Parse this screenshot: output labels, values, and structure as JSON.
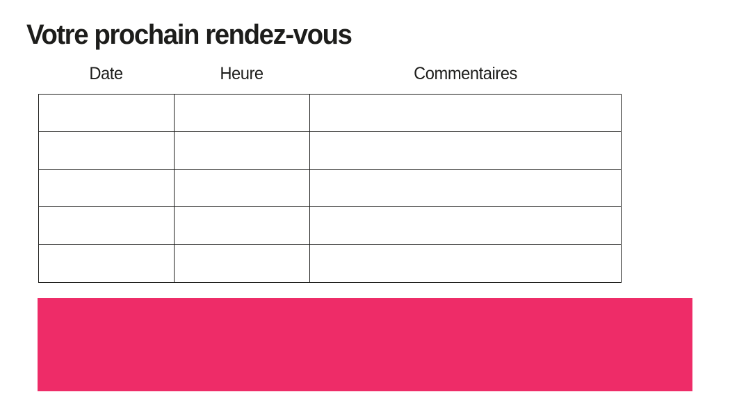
{
  "page": {
    "title": "Votre prochain rendez-vous",
    "background_color": "#ffffff",
    "text_color": "#1d1d1b"
  },
  "table": {
    "columns": [
      {
        "label": "Date"
      },
      {
        "label": "Heure"
      },
      {
        "label": "Commentaires"
      }
    ],
    "rows": [
      {
        "date": "",
        "heure": "",
        "commentaires": ""
      },
      {
        "date": "",
        "heure": "",
        "commentaires": ""
      },
      {
        "date": "",
        "heure": "",
        "commentaires": ""
      },
      {
        "date": "",
        "heure": "",
        "commentaires": ""
      },
      {
        "date": "",
        "heure": "",
        "commentaires": ""
      }
    ],
    "border_color": "#1d1d1b"
  },
  "highlight_block": {
    "text": "",
    "color": "#ee2c68"
  }
}
